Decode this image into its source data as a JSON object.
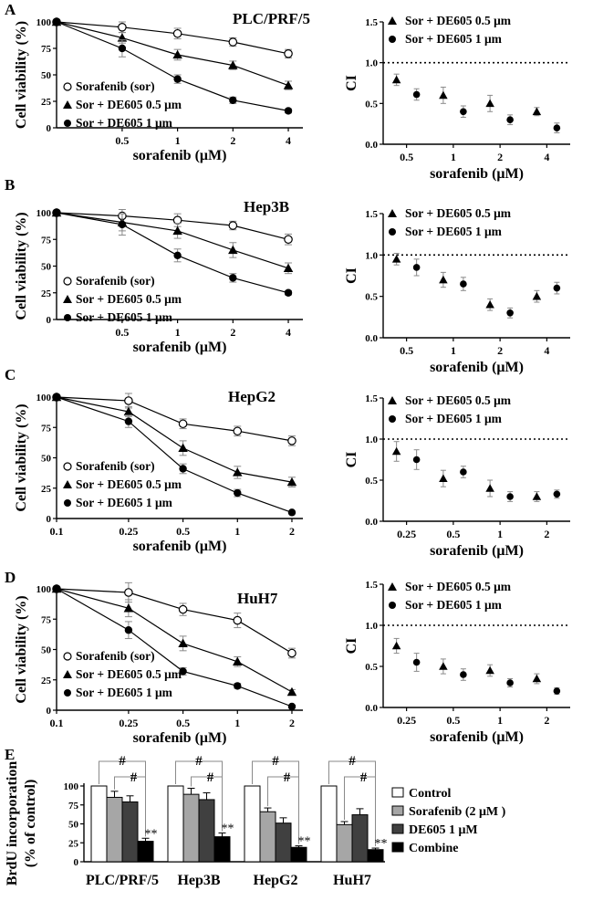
{
  "panels": [
    {
      "letter": "A",
      "cell_line": "PLC/PRF/5"
    },
    {
      "letter": "B",
      "cell_line": "Hep3B"
    },
    {
      "letter": "C",
      "cell_line": "HepG2"
    },
    {
      "letter": "D",
      "cell_line": "HuH7"
    },
    {
      "letter": "E"
    }
  ],
  "chart_data": [
    {
      "id": "A-viability",
      "type": "line",
      "ylabel": "Cell viability (%)",
      "xlabel": "sorafenib (μM)",
      "x_scale": "log",
      "xlim": [
        0.22,
        4.8
      ],
      "ylim": [
        0,
        100
      ],
      "x_ticks": [
        0.5,
        1,
        2,
        4
      ],
      "x_tick_labels": [
        "0.5",
        "1",
        "2",
        "4"
      ],
      "y_ticks": [
        0,
        25,
        50,
        75,
        100
      ],
      "x": [
        0.22,
        0.5,
        1,
        2,
        4
      ],
      "series": [
        {
          "name": "Sorafenib (sor)",
          "marker": "open-circle",
          "values": [
            100,
            95,
            89,
            81,
            70
          ],
          "errors": [
            0,
            5,
            5,
            4,
            4
          ]
        },
        {
          "name": "Sor + DE605 0.5 μm",
          "marker": "triangle",
          "values": [
            100,
            85,
            69,
            59,
            40
          ],
          "errors": [
            0,
            5,
            5,
            4,
            4
          ]
        },
        {
          "name": "Sor + DE605 1 μm",
          "marker": "filled-circle",
          "values": [
            100,
            75,
            46,
            26,
            16
          ],
          "errors": [
            0,
            8,
            4,
            3,
            2
          ]
        }
      ],
      "legend_position": "bottom-left"
    },
    {
      "id": "A-CI",
      "type": "scatter",
      "ylabel": "CI",
      "xlabel": "sorafenib (μM)",
      "xlim": [
        0,
        4
      ],
      "ylim": [
        0,
        1.5
      ],
      "x_tick_labels": [
        "0.5",
        "1",
        "2",
        "4"
      ],
      "y_ticks": [
        0.0,
        0.5,
        1.0,
        1.5
      ],
      "reference_line": 1.0,
      "series": [
        {
          "name": "Sor + DE605 0.5 μm",
          "marker": "triangle",
          "values": [
            0.79,
            0.6,
            0.5,
            0.4
          ],
          "errors": [
            0.07,
            0.1,
            0.1,
            0.05
          ]
        },
        {
          "name": "Sor + DE605 1 μm",
          "marker": "filled-circle",
          "values": [
            0.61,
            0.4,
            0.3,
            0.2
          ],
          "errors": [
            0.07,
            0.07,
            0.06,
            0.06
          ]
        }
      ],
      "legend_position": "top-left"
    },
    {
      "id": "B-viability",
      "type": "line",
      "ylabel": "Cell viability (%)",
      "xlabel": "sorafenib (μM)",
      "x_scale": "log",
      "xlim": [
        0.22,
        4.8
      ],
      "ylim": [
        0,
        100
      ],
      "x_ticks": [
        0.5,
        1,
        2,
        4
      ],
      "x_tick_labels": [
        "0.5",
        "1",
        "2",
        "4"
      ],
      "y_ticks": [
        0,
        25,
        50,
        75,
        100
      ],
      "x": [
        0.22,
        0.5,
        1,
        2,
        4
      ],
      "series": [
        {
          "name": "Sorafenib (sor)",
          "marker": "open-circle",
          "values": [
            100,
            97,
            93,
            88,
            75
          ],
          "errors": [
            0,
            6,
            6,
            4,
            5
          ]
        },
        {
          "name": "Sor + DE605 0.5 μm",
          "marker": "triangle",
          "values": [
            100,
            91,
            83,
            65,
            48
          ],
          "errors": [
            0,
            8,
            7,
            7,
            5
          ]
        },
        {
          "name": "Sor + DE605 1 μm",
          "marker": "filled-circle",
          "values": [
            100,
            89,
            60,
            39,
            25
          ],
          "errors": [
            0,
            10,
            6,
            4,
            2
          ]
        }
      ],
      "legend_position": "bottom-left"
    },
    {
      "id": "B-CI",
      "type": "scatter",
      "ylabel": "CI",
      "xlabel": "sorafenib (μM)",
      "xlim": [
        0,
        4
      ],
      "ylim": [
        0,
        1.5
      ],
      "x_tick_labels": [
        "0.5",
        "1",
        "2",
        "4"
      ],
      "y_ticks": [
        0.0,
        0.5,
        1.0,
        1.5
      ],
      "reference_line": 1.0,
      "series": [
        {
          "name": "Sor + DE605 0.5 μm",
          "marker": "triangle",
          "values": [
            0.95,
            0.7,
            0.4,
            0.5
          ],
          "errors": [
            0.07,
            0.09,
            0.07,
            0.07
          ]
        },
        {
          "name": "Sor + DE605 1 μm",
          "marker": "filled-circle",
          "values": [
            0.85,
            0.65,
            0.3,
            0.6
          ],
          "errors": [
            0.1,
            0.08,
            0.06,
            0.07
          ]
        }
      ],
      "legend_position": "top-left"
    },
    {
      "id": "C-viability",
      "type": "line",
      "ylabel": "Cell viability (%)",
      "xlabel": "sorafenib (μM)",
      "x_scale": "log",
      "xlim": [
        0.1,
        2.3
      ],
      "ylim": [
        0,
        100
      ],
      "x_ticks": [
        0.1,
        0.25,
        0.5,
        1,
        2
      ],
      "x_tick_labels": [
        "0.1",
        "0.25",
        "0.5",
        "1",
        "2"
      ],
      "y_ticks": [
        0,
        25,
        50,
        75,
        100
      ],
      "x": [
        0.1,
        0.25,
        0.5,
        1,
        2
      ],
      "series": [
        {
          "name": "Sorafenib (sor)",
          "marker": "open-circle",
          "values": [
            100,
            97,
            78,
            72,
            64
          ],
          "errors": [
            0,
            6,
            4,
            4,
            4
          ]
        },
        {
          "name": "Sor + DE605 0.5 μm",
          "marker": "triangle",
          "values": [
            100,
            88,
            58,
            38,
            30
          ],
          "errors": [
            0,
            4,
            6,
            5,
            4
          ]
        },
        {
          "name": "Sor + DE605 1 μm",
          "marker": "filled-circle",
          "values": [
            100,
            80,
            41,
            21,
            5
          ],
          "errors": [
            0,
            5,
            4,
            3,
            1
          ]
        }
      ],
      "legend_position": "bottom-left"
    },
    {
      "id": "C-CI",
      "type": "scatter",
      "ylabel": "CI",
      "xlabel": "sorafenib (μM)",
      "xlim": [
        0,
        4
      ],
      "ylim": [
        0,
        1.5
      ],
      "x_tick_labels": [
        "0.25",
        "0.5",
        "1",
        "2"
      ],
      "y_ticks": [
        0.0,
        0.5,
        1.0,
        1.5
      ],
      "reference_line": 1.0,
      "series": [
        {
          "name": "Sor + DE605 0.5 μm",
          "marker": "triangle",
          "values": [
            0.85,
            0.52,
            0.4,
            0.3
          ],
          "errors": [
            0.12,
            0.1,
            0.1,
            0.06
          ]
        },
        {
          "name": "Sor + DE605 1 μm",
          "marker": "filled-circle",
          "values": [
            0.75,
            0.6,
            0.3,
            0.33
          ],
          "errors": [
            0.12,
            0.07,
            0.06,
            0.05
          ]
        }
      ],
      "legend_position": "top-left"
    },
    {
      "id": "D-viability",
      "type": "line",
      "ylabel": "Cell viability (%)",
      "xlabel": "sorafenib (μM)",
      "x_scale": "log",
      "xlim": [
        0.1,
        2.3
      ],
      "ylim": [
        0,
        100
      ],
      "x_ticks": [
        0.1,
        0.25,
        0.5,
        1,
        2
      ],
      "x_tick_labels": [
        "0.1",
        "0.25",
        "0.5",
        "1",
        "2"
      ],
      "y_ticks": [
        0,
        25,
        50,
        75,
        100
      ],
      "x": [
        0.1,
        0.25,
        0.5,
        1,
        2
      ],
      "series": [
        {
          "name": "Sorafenib (sor)",
          "marker": "open-circle",
          "values": [
            100,
            97,
            83,
            74,
            47
          ],
          "errors": [
            0,
            8,
            5,
            6,
            4
          ]
        },
        {
          "name": "Sor + DE605 0.5 μm",
          "marker": "triangle",
          "values": [
            100,
            84,
            55,
            40,
            15
          ],
          "errors": [
            0,
            7,
            6,
            4,
            2
          ]
        },
        {
          "name": "Sor + DE605 1 μm",
          "marker": "filled-circle",
          "values": [
            100,
            66,
            32,
            20,
            3
          ],
          "errors": [
            0,
            7,
            3,
            2,
            1
          ]
        }
      ],
      "legend_position": "bottom-left"
    },
    {
      "id": "D-CI",
      "type": "scatter",
      "ylabel": "CI",
      "xlabel": "sorafenib (μM)",
      "xlim": [
        0,
        4
      ],
      "ylim": [
        0,
        1.5
      ],
      "x_tick_labels": [
        "0.25",
        "0.5",
        "1",
        "2"
      ],
      "y_ticks": [
        0.0,
        0.5,
        1.0,
        1.5
      ],
      "reference_line": 1.0,
      "series": [
        {
          "name": "Sor + DE605 0.5 μm",
          "marker": "triangle",
          "values": [
            0.75,
            0.5,
            0.45,
            0.35
          ],
          "errors": [
            0.09,
            0.09,
            0.07,
            0.06
          ]
        },
        {
          "name": "Sor + DE605 1 μm",
          "marker": "filled-circle",
          "values": [
            0.55,
            0.4,
            0.3,
            0.2
          ],
          "errors": [
            0.11,
            0.07,
            0.05,
            0.04
          ]
        }
      ],
      "legend_position": "top-left"
    },
    {
      "id": "E-brdu",
      "type": "bar",
      "ylabel": "BrdU incorporation (% of control)",
      "ylim": [
        0,
        100
      ],
      "y_ticks": [
        0,
        25,
        50,
        75,
        100
      ],
      "categories": [
        "PLC/PRF/5",
        "Hep3B",
        "HepG2",
        "HuH7"
      ],
      "series": [
        {
          "name": "Control",
          "color": "#ffffff",
          "values": [
            100,
            100,
            100,
            100
          ],
          "errors": [
            0,
            0,
            0,
            0
          ]
        },
        {
          "name": "Sorafenib (2 μM )",
          "color": "#a6a6a6",
          "values": [
            85,
            89,
            66,
            49
          ],
          "errors": [
            8,
            8,
            5,
            4
          ]
        },
        {
          "name": "DE605 1 μM",
          "color": "#404040",
          "values": [
            79,
            82,
            51,
            62
          ],
          "errors": [
            8,
            9,
            7,
            8
          ]
        },
        {
          "name": "Combine",
          "color": "#000000",
          "values": [
            27,
            33,
            19,
            16
          ],
          "errors": [
            4,
            5,
            2,
            2
          ]
        }
      ],
      "annotations": {
        "pair_marker": "#",
        "significance": "**"
      },
      "legend_position": "right"
    }
  ]
}
